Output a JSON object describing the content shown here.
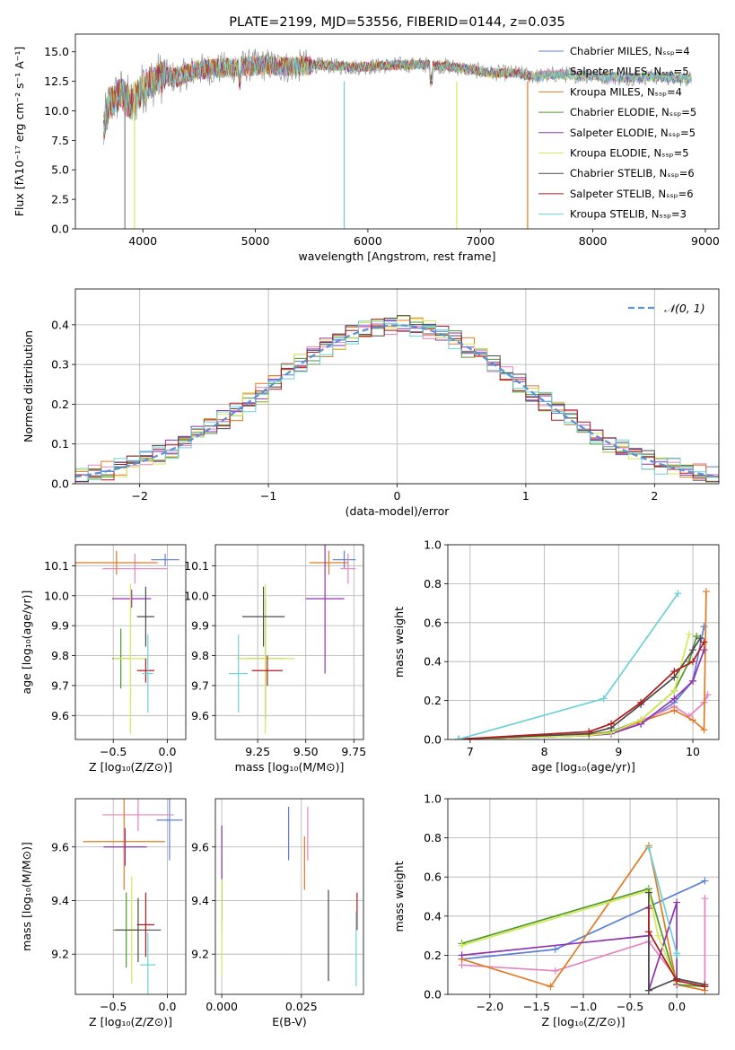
{
  "colors": [
    "#5b7fd6",
    "#e682c0",
    "#e07b21",
    "#4e9a2c",
    "#8e35b0",
    "#d4e95a",
    "#4a4a4a",
    "#b01b1b",
    "#6dd0d8"
  ],
  "charts": [
    {
      "id": "spectrum",
      "type": "line",
      "title": "PLATE=2199, MJD=53556, FIBERID=0144, z=0.035",
      "xlabel": "wavelength [Angstrom, rest frame]",
      "ylabel": "Flux [fλ10⁻¹⁷ erg cm⁻² s⁻¹ A⁻¹]",
      "xlim": [
        3400,
        9120
      ],
      "ylim": [
        0,
        16.5
      ],
      "xticks": [
        4000,
        5000,
        6000,
        7000,
        8000,
        9000
      ],
      "yticks": [
        0.0,
        2.5,
        5.0,
        7.5,
        10.0,
        12.5,
        15.0
      ],
      "grid": false,
      "legend_position": "top-right",
      "legend": [
        "Chabrier MILES, Nₛₛₚ=4",
        "Salpeter MILES, Nₛₛₚ=5",
        "Kroupa MILES, Nₛₛₚ=4",
        "Chabrier ELODIE, Nₛₛₚ=5",
        "Salpeter ELODIE, Nₛₛₚ=5",
        "Kroupa ELODIE, Nₛₛₚ=5",
        "Chabrier STELIB, Nₛₛₚ=6",
        "Salpeter STELIB, Nₛₛₚ=6",
        "Kroupa STELIB, Nₛₛₚ=3"
      ],
      "continuum": {
        "x": [
          3650,
          3700,
          3800,
          3900,
          4000,
          4100,
          4200,
          4300,
          4400,
          4500,
          4700,
          4900,
          5100,
          5300,
          5500,
          5700,
          5900,
          6100,
          6300,
          6500,
          6700,
          6900,
          7100,
          7300,
          7500,
          7700,
          7900,
          8100,
          8300,
          8500,
          8700,
          8880
        ],
        "y": [
          8.5,
          10.5,
          11.5,
          10.5,
          12.0,
          12.6,
          13.0,
          12.8,
          13.2,
          13.5,
          13.6,
          13.8,
          13.9,
          13.7,
          13.9,
          13.8,
          13.7,
          13.8,
          13.9,
          13.9,
          13.8,
          13.5,
          13.2,
          13.2,
          12.9,
          13.1,
          13.0,
          12.9,
          12.8,
          12.9,
          12.8,
          12.7
        ]
      },
      "dips": [
        {
          "x": 3840,
          "series": 6
        },
        {
          "x": 3925,
          "series": 5
        },
        {
          "x": 5790,
          "series": 8
        },
        {
          "x": 6790,
          "series": 5
        },
        {
          "x": 7420,
          "series": 2
        }
      ]
    },
    {
      "id": "residuals",
      "type": "histogram",
      "xlabel": "(data-model)/error",
      "ylabel": "Normed distribution",
      "xlim": [
        -2.5,
        2.5
      ],
      "ylim": [
        0,
        0.49
      ],
      "xticks": [
        -2,
        -1,
        0,
        1,
        2
      ],
      "yticks": [
        0.0,
        0.1,
        0.2,
        0.3,
        0.4
      ],
      "grid": true,
      "legend_position": "top-right",
      "legend": [
        "𝒩(0, 1)"
      ],
      "bin_width": 0.1
    },
    {
      "id": "age_vs_Z",
      "type": "errorbar",
      "xlabel": "Z [log₁₀(Z/Z⊙)]",
      "ylabel": "age  [log₁₀(age/yr)]",
      "xlim": [
        -0.85,
        0.17
      ],
      "ylim": [
        9.52,
        10.17
      ],
      "xticks": [
        -0.5,
        0.0
      ],
      "yticks": [
        9.6,
        9.7,
        9.8,
        9.9,
        10.0,
        10.1
      ],
      "grid": true,
      "points": [
        {
          "x": -0.02,
          "y": 10.12,
          "dx": 0.13,
          "dy": 0.02
        },
        {
          "x": -0.3,
          "y": 10.09,
          "dx": 0.3,
          "dy": 0.05
        },
        {
          "x": -0.47,
          "y": 10.11,
          "dx": 0.38,
          "dy": 0.04
        },
        {
          "x": -0.43,
          "y": 9.79,
          "dx": 0.08,
          "dy": 0.1
        },
        {
          "x": -0.33,
          "y": 9.99,
          "dx": 0.18,
          "dy": 0.03
        },
        {
          "x": -0.34,
          "y": 9.79,
          "dx": 0.16,
          "dy": 0.25
        },
        {
          "x": -0.2,
          "y": 9.93,
          "dx": 0.08,
          "dy": 0.1
        },
        {
          "x": -0.2,
          "y": 9.75,
          "dx": 0.08,
          "dy": 0.04
        },
        {
          "x": -0.18,
          "y": 9.74,
          "dx": 0.05,
          "dy": 0.13
        }
      ]
    },
    {
      "id": "age_vs_mass",
      "type": "errorbar",
      "xlabel": "mass [log₁₀(M/M⊙)]",
      "ylabel": "",
      "xlim": [
        9.03,
        9.8
      ],
      "ylim": [
        9.52,
        10.17
      ],
      "xticks": [
        9.25,
        9.5,
        9.75
      ],
      "yticks": [
        9.6,
        9.7,
        9.8,
        9.9,
        10.0,
        10.1
      ],
      "grid": true,
      "points": [
        {
          "x": 9.7,
          "y": 10.12,
          "dx": 0.06,
          "dy": 0.03
        },
        {
          "x": 9.72,
          "y": 10.09,
          "dx": 0.04,
          "dy": 0.05
        },
        {
          "x": 9.62,
          "y": 10.11,
          "dx": 0.1,
          "dy": 0.04
        },
        {
          "x": 9.29,
          "y": 9.79,
          "dx": 0.1,
          "dy": 0.2
        },
        {
          "x": 9.6,
          "y": 9.99,
          "dx": 0.1,
          "dy": 0.25
        },
        {
          "x": 9.29,
          "y": 9.79,
          "dx": 0.15,
          "dy": 0.25
        },
        {
          "x": 9.28,
          "y": 9.93,
          "dx": 0.11,
          "dy": 0.1
        },
        {
          "x": 9.3,
          "y": 9.75,
          "dx": 0.08,
          "dy": 0.05
        },
        {
          "x": 9.15,
          "y": 9.74,
          "dx": 0.05,
          "dy": 0.13
        }
      ]
    },
    {
      "id": "weight_vs_age",
      "type": "line",
      "xlabel": "age  [log₁₀(age/yr)]",
      "ylabel": "mass weight",
      "xlim": [
        6.7,
        10.35
      ],
      "ylim": [
        0,
        1.0
      ],
      "xticks": [
        7,
        8,
        9,
        10
      ],
      "yticks": [
        0.0,
        0.2,
        0.4,
        0.6,
        0.8,
        1.0
      ],
      "grid": true,
      "series": [
        {
          "x": [
            6.85,
            8.6,
            8.9,
            9.3,
            9.75,
            10.0,
            10.15
          ],
          "y": [
            0.002,
            0.02,
            0.03,
            0.08,
            0.19,
            0.3,
            0.58
          ]
        },
        {
          "x": [
            6.85,
            8.6,
            8.9,
            9.75,
            9.95,
            10.15,
            10.2
          ],
          "y": [
            0.002,
            0.02,
            0.03,
            0.17,
            0.12,
            0.19,
            0.23
          ]
        },
        {
          "x": [
            6.85,
            8.6,
            8.9,
            9.75,
            10.0,
            10.15,
            10.18
          ],
          "y": [
            0.002,
            0.025,
            0.04,
            0.15,
            0.1,
            0.05,
            0.76
          ]
        },
        {
          "x": [
            6.85,
            8.6,
            8.9,
            9.3,
            9.75,
            9.95,
            10.05
          ],
          "y": [
            0.002,
            0.02,
            0.04,
            0.1,
            0.25,
            0.4,
            0.53
          ]
        },
        {
          "x": [
            6.85,
            8.6,
            8.9,
            9.3,
            9.75,
            10.0,
            10.15
          ],
          "y": [
            0.002,
            0.02,
            0.03,
            0.08,
            0.21,
            0.3,
            0.46
          ]
        },
        {
          "x": [
            6.85,
            8.6,
            8.9,
            9.3,
            9.75,
            9.95
          ],
          "y": [
            0.002,
            0.02,
            0.035,
            0.1,
            0.25,
            0.54
          ]
        },
        {
          "x": [
            6.85,
            8.6,
            8.9,
            9.3,
            9.75,
            10.0,
            10.1
          ],
          "y": [
            0.002,
            0.03,
            0.06,
            0.18,
            0.32,
            0.46,
            0.52
          ]
        },
        {
          "x": [
            6.85,
            8.6,
            8.9,
            9.3,
            9.75,
            10.0,
            10.15
          ],
          "y": [
            0.002,
            0.04,
            0.08,
            0.19,
            0.35,
            0.4,
            0.5
          ]
        },
        {
          "x": [
            6.85,
            8.8,
            9.8
          ],
          "y": [
            0.002,
            0.21,
            0.75
          ]
        }
      ]
    },
    {
      "id": "mass_vs_Z",
      "type": "errorbar",
      "xlabel": "Z [log₁₀(Z/Z⊙)]",
      "ylabel": "mass [log₁₀(M/M⊙)]",
      "xlim": [
        -0.85,
        0.17
      ],
      "ylim": [
        9.05,
        9.78
      ],
      "xticks": [
        -0.5,
        0.0
      ],
      "yticks": [
        9.2,
        9.4,
        9.6
      ],
      "grid": true,
      "points": [
        {
          "x": 0.02,
          "y": 9.7,
          "dx": 0.12,
          "dy": 0.15
        },
        {
          "x": -0.27,
          "y": 9.72,
          "dx": 0.33,
          "dy": 0.06
        },
        {
          "x": -0.4,
          "y": 9.62,
          "dx": 0.38,
          "dy": 0.18
        },
        {
          "x": -0.38,
          "y": 9.29,
          "dx": 0.12,
          "dy": 0.14
        },
        {
          "x": -0.39,
          "y": 9.6,
          "dx": 0.2,
          "dy": 0.07
        },
        {
          "x": -0.33,
          "y": 9.29,
          "dx": 0.15,
          "dy": 0.2
        },
        {
          "x": -0.27,
          "y": 9.29,
          "dx": 0.21,
          "dy": 0.12
        },
        {
          "x": -0.2,
          "y": 9.31,
          "dx": 0.08,
          "dy": 0.12
        },
        {
          "x": -0.18,
          "y": 9.16,
          "dx": 0.07,
          "dy": 0.12
        }
      ]
    },
    {
      "id": "mass_vs_EBV",
      "type": "errorbar",
      "xlabel": "E(B-V)",
      "ylabel": "",
      "xlim": [
        -0.002,
        0.0445
      ],
      "ylim": [
        9.05,
        9.78
      ],
      "xticks": [
        0.0,
        0.025
      ],
      "yticks": [
        9.2,
        9.4,
        9.6
      ],
      "grid": true,
      "points": [
        {
          "x": 0.021,
          "y": 9.65,
          "dx": 0,
          "dy": 0.1
        },
        {
          "x": 0.027,
          "y": 9.65,
          "dx": 0,
          "dy": 0.1
        },
        {
          "x": 0.026,
          "y": 9.54,
          "dx": 0,
          "dy": 0.1
        },
        {
          "x": 0.0,
          "y": 9.48,
          "dx": 0,
          "dy": 0.2
        },
        {
          "x": 0.0,
          "y": 9.5,
          "dx": 0,
          "dy": 0.18
        },
        {
          "x": 0.0,
          "y": 9.3,
          "dx": 0,
          "dy": 0.18
        },
        {
          "x": 0.0335,
          "y": 9.27,
          "dx": 0,
          "dy": 0.17
        },
        {
          "x": 0.0425,
          "y": 9.36,
          "dx": 0,
          "dy": 0.07
        },
        {
          "x": 0.0422,
          "y": 9.22,
          "dx": 0,
          "dy": 0.14
        }
      ]
    },
    {
      "id": "weight_vs_Z",
      "type": "line",
      "xlabel": "Z [log₁₀(Z/Z⊙)]",
      "ylabel": "mass weight",
      "xlim": [
        -2.45,
        0.45
      ],
      "ylim": [
        0,
        1.0
      ],
      "xticks": [
        -2.0,
        -1.5,
        -1.0,
        -0.5,
        0.0
      ],
      "yticks": [
        0.0,
        0.2,
        0.4,
        0.6,
        0.8,
        1.0
      ],
      "grid": true,
      "series": [
        {
          "x": [
            -2.3,
            -1.3,
            0.3
          ],
          "y": [
            0.18,
            0.23,
            0.58
          ]
        },
        {
          "x": [
            -2.3,
            -1.3,
            -0.3,
            0.0,
            0.3,
            0.3
          ],
          "y": [
            0.15,
            0.12,
            0.27,
            0.08,
            0.05,
            0.49
          ]
        },
        {
          "x": [
            -2.3,
            -1.35,
            -0.3,
            0.0,
            0.3
          ],
          "y": [
            0.18,
            0.04,
            0.76,
            0.05,
            0.02
          ]
        },
        {
          "x": [
            -2.3,
            -0.3,
            0.0,
            0.3
          ],
          "y": [
            0.26,
            0.54,
            0.05,
            0.04
          ]
        },
        {
          "x": [
            -2.3,
            -0.3,
            -0.3,
            0.0,
            0.0
          ],
          "y": [
            0.2,
            0.3,
            0.02,
            0.47,
            0.05
          ]
        },
        {
          "x": [
            -2.3,
            -0.3,
            -0.2,
            0.0
          ],
          "y": [
            0.25,
            0.53,
            0.3,
            0.06
          ]
        },
        {
          "x": [
            -0.3,
            -0.3,
            0.0,
            0.3
          ],
          "y": [
            0.52,
            0.02,
            0.08,
            0.05
          ]
        },
        {
          "x": [
            -0.3,
            -0.3,
            0.0,
            0.3
          ],
          "y": [
            0.44,
            0.32,
            0.07,
            0.04
          ]
        },
        {
          "x": [
            -0.3,
            0.0,
            0.0
          ],
          "y": [
            0.75,
            0.21,
            0.2
          ]
        }
      ]
    }
  ]
}
